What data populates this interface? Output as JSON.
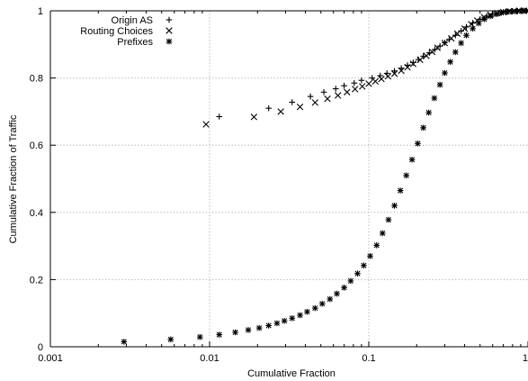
{
  "chart_data": {
    "type": "scatter",
    "title": "",
    "xlabel": "Cumulative Fraction",
    "ylabel": "Cumulative Fraction of Traffic",
    "x_scale": "log",
    "xlim": [
      0.001,
      1
    ],
    "ylim": [
      0,
      1
    ],
    "x_ticks": [
      "0.001",
      "0.01",
      "0.1",
      "1"
    ],
    "y_ticks": [
      "0",
      "0.2",
      "0.4",
      "0.6",
      "0.8",
      "1"
    ],
    "grid": true,
    "legend_position": "top-left",
    "colors": {
      "marker": "#000000",
      "grid": "#9a9a9a",
      "axis": "#000000"
    },
    "series": [
      {
        "name": "Origin AS",
        "marker": "plus",
        "x": [
          0.0115,
          0.0235,
          0.033,
          0.043,
          0.0522,
          0.062,
          0.07,
          0.081,
          0.09,
          0.105,
          0.118,
          0.13,
          0.145,
          0.16,
          0.175,
          0.19,
          0.205,
          0.22,
          0.24,
          0.26,
          0.28,
          0.3,
          0.32,
          0.35,
          0.38,
          0.41,
          0.45,
          0.5,
          0.55,
          0.6,
          0.65,
          0.7,
          0.75,
          0.8,
          0.85,
          0.9,
          0.95
        ],
        "y": [
          0.685,
          0.71,
          0.728,
          0.745,
          0.758,
          0.768,
          0.777,
          0.785,
          0.793,
          0.8,
          0.807,
          0.814,
          0.821,
          0.829,
          0.838,
          0.846,
          0.855,
          0.865,
          0.875,
          0.885,
          0.895,
          0.905,
          0.915,
          0.927,
          0.94,
          0.952,
          0.964,
          0.975,
          0.984,
          0.99,
          0.994,
          0.996,
          0.998,
          0.999,
          1.0,
          1.0,
          1.0
        ]
      },
      {
        "name": "Routing Choices",
        "marker": "cross",
        "x": [
          0.0095,
          0.019,
          0.028,
          0.037,
          0.046,
          0.055,
          0.064,
          0.073,
          0.082,
          0.091,
          0.1,
          0.11,
          0.12,
          0.132,
          0.145,
          0.16,
          0.175,
          0.19,
          0.21,
          0.23,
          0.25,
          0.27,
          0.3,
          0.33,
          0.36,
          0.4,
          0.44,
          0.48,
          0.53,
          0.58,
          0.64,
          0.7,
          0.76,
          0.82,
          0.88,
          0.94
        ],
        "y": [
          0.662,
          0.684,
          0.7,
          0.714,
          0.727,
          0.738,
          0.748,
          0.758,
          0.767,
          0.775,
          0.783,
          0.79,
          0.797,
          0.805,
          0.813,
          0.822,
          0.832,
          0.842,
          0.854,
          0.866,
          0.878,
          0.89,
          0.904,
          0.918,
          0.932,
          0.947,
          0.96,
          0.971,
          0.981,
          0.988,
          0.993,
          0.996,
          0.998,
          0.999,
          1.0,
          1.0
        ]
      },
      {
        "name": "Prefixes",
        "marker": "star",
        "x": [
          0.0029,
          0.0057,
          0.0087,
          0.0115,
          0.0145,
          0.0175,
          0.0205,
          0.0235,
          0.0265,
          0.0295,
          0.033,
          0.037,
          0.041,
          0.046,
          0.051,
          0.057,
          0.063,
          0.07,
          0.077,
          0.085,
          0.093,
          0.102,
          0.112,
          0.122,
          0.133,
          0.145,
          0.158,
          0.172,
          0.187,
          0.203,
          0.22,
          0.238,
          0.258,
          0.28,
          0.3,
          0.325,
          0.35,
          0.38,
          0.41,
          0.45,
          0.49,
          0.53,
          0.58,
          0.63,
          0.68,
          0.74,
          0.8,
          0.86,
          0.93,
          0.98
        ],
        "y": [
          0.015,
          0.022,
          0.029,
          0.036,
          0.043,
          0.05,
          0.056,
          0.063,
          0.07,
          0.077,
          0.085,
          0.094,
          0.104,
          0.115,
          0.128,
          0.142,
          0.158,
          0.176,
          0.196,
          0.218,
          0.242,
          0.27,
          0.302,
          0.338,
          0.378,
          0.42,
          0.465,
          0.51,
          0.557,
          0.605,
          0.652,
          0.697,
          0.74,
          0.78,
          0.815,
          0.848,
          0.877,
          0.904,
          0.927,
          0.947,
          0.963,
          0.975,
          0.984,
          0.99,
          0.994,
          0.997,
          0.998,
          0.999,
          1.0,
          1.0
        ]
      }
    ]
  }
}
